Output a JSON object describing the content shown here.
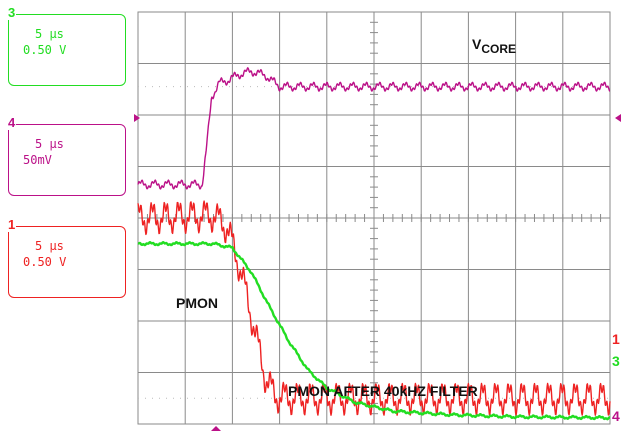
{
  "colors": {
    "ch3": "#22dd22",
    "ch4": "#bb1188",
    "ch1": "#ee2222",
    "grid": "#8a8a8a"
  },
  "channels": [
    {
      "num": "3",
      "time": "5 µs",
      "scale": "0.50 V",
      "color": "#22dd22"
    },
    {
      "num": "4",
      "time": "5 µs",
      "scale": "50mV",
      "color": "#bb1188"
    },
    {
      "num": "1",
      "time": "5 µs",
      "scale": "0.50 V",
      "color": "#ee2222"
    }
  ],
  "labels": {
    "vcore": "V",
    "vcore_sub": "CORE",
    "pmon": "PMON",
    "pmon_filtered": "PMON AFTER 40kHZ FILTER"
  },
  "markers": {
    "right_1": "1",
    "right_3": "3",
    "right_4": "4"
  },
  "chart_data": {
    "type": "line",
    "xlabel": "",
    "ylabel": "",
    "xlim": [
      0,
      50
    ],
    "ylim": [
      -4,
      4
    ],
    "grid": true,
    "x_divisions": 10,
    "y_divisions": 8,
    "series": [
      {
        "name": "V CORE",
        "color": "#bb1188",
        "x": [
          0,
          6.8,
          7.2,
          7.8,
          8.6,
          9.6,
          10.6,
          12,
          13.5,
          15,
          50
        ],
        "y": [
          0.65,
          0.65,
          1.25,
          2.35,
          2.62,
          2.68,
          2.78,
          2.85,
          2.77,
          2.55,
          2.55
        ],
        "ripple": 0.06
      },
      {
        "name": "PMON",
        "color": "#ee2222",
        "x": [
          0,
          8,
          9.5,
          11,
          12.5,
          13.5,
          14.5,
          16,
          50
        ],
        "y": [
          0.0,
          0.05,
          -0.2,
          -1.1,
          -2.3,
          -3.1,
          -3.45,
          -3.5,
          -3.5
        ],
        "ripple": 0.22
      },
      {
        "name": "PMON AFTER 40kHZ FILTER",
        "color": "#22dd22",
        "x": [
          0,
          8,
          10,
          12,
          14,
          16,
          18,
          20,
          23,
          27,
          33,
          40,
          50
        ],
        "y": [
          -0.5,
          -0.5,
          -0.58,
          -1.05,
          -1.75,
          -2.4,
          -2.95,
          -3.3,
          -3.58,
          -3.75,
          -3.82,
          -3.86,
          -3.88
        ],
        "ripple": 0.02
      }
    ]
  }
}
